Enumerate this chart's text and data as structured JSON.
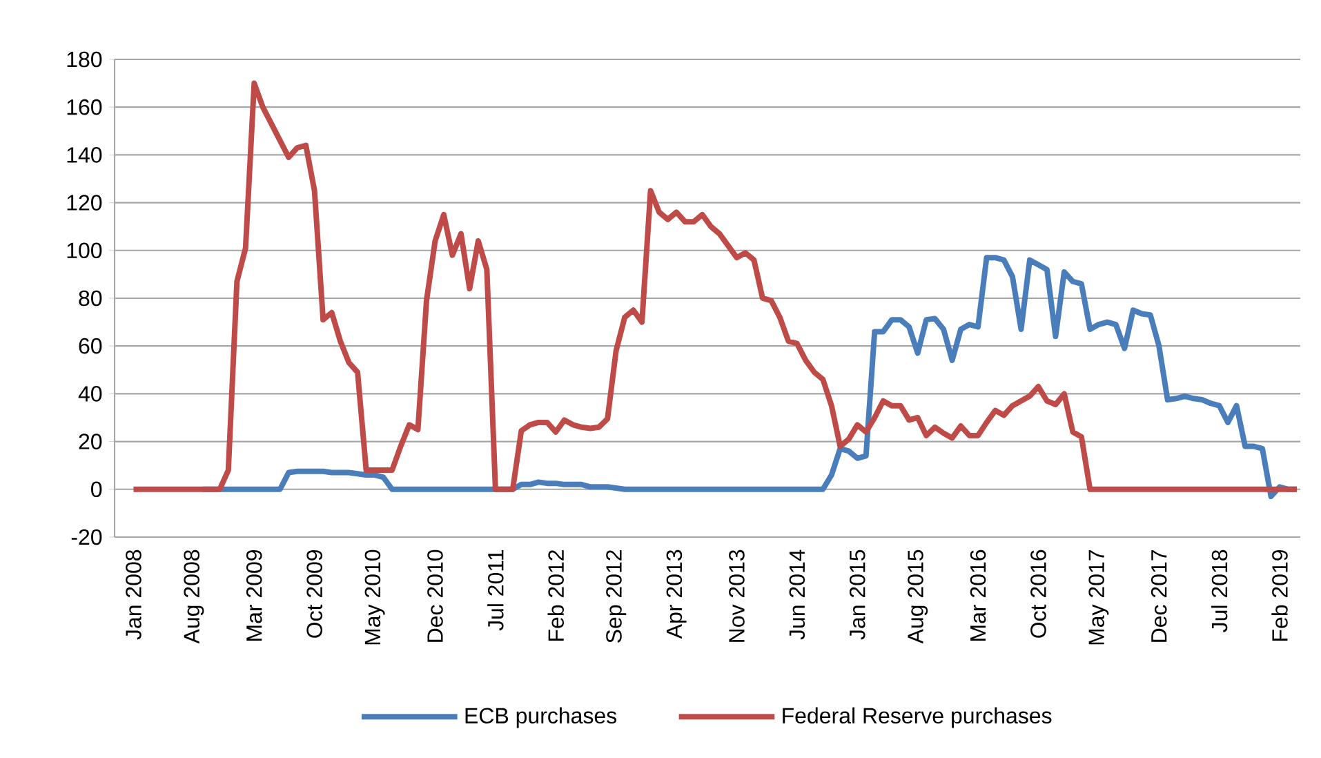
{
  "chart_data": {
    "type": "line",
    "categories": [
      "Jan 2008",
      null,
      null,
      null,
      null,
      null,
      null,
      "Aug 2008",
      null,
      null,
      null,
      null,
      null,
      null,
      "Mar 2009",
      null,
      null,
      null,
      null,
      null,
      null,
      "Oct 2009",
      null,
      null,
      null,
      null,
      null,
      null,
      "May 2010",
      null,
      null,
      null,
      null,
      null,
      null,
      "Dec 2010",
      null,
      null,
      null,
      null,
      null,
      null,
      "Jul 2011",
      null,
      null,
      null,
      null,
      null,
      null,
      "Feb 2012",
      null,
      null,
      null,
      null,
      null,
      null,
      "Sep 2012",
      null,
      null,
      null,
      null,
      null,
      null,
      "Apr 2013",
      null,
      null,
      null,
      null,
      null,
      null,
      "Nov 2013",
      null,
      null,
      null,
      null,
      null,
      null,
      "Jun 2014",
      null,
      null,
      null,
      null,
      null,
      null,
      "Jan 2015",
      null,
      null,
      null,
      null,
      null,
      null,
      "Aug 2015",
      null,
      null,
      null,
      null,
      null,
      null,
      "Mar 2016",
      null,
      null,
      null,
      null,
      null,
      null,
      "Oct 2016",
      null,
      null,
      null,
      null,
      null,
      null,
      "May 2017",
      null,
      null,
      null,
      null,
      null,
      null,
      "Dec 2017",
      null,
      null,
      null,
      null,
      null,
      null,
      "Jul 2018",
      null,
      null,
      null,
      null,
      null,
      null,
      "Feb 2019",
      null,
      null
    ],
    "series": [
      {
        "name": "ECB purchases",
        "color": "#4a7ebb",
        "values": [
          null,
          null,
          null,
          null,
          null,
          null,
          null,
          null,
          0,
          0,
          0,
          0,
          0,
          0,
          0,
          0,
          0,
          0,
          7,
          7.5,
          7.5,
          7.5,
          7.5,
          7,
          7,
          7,
          6.5,
          6,
          6,
          5,
          0,
          0,
          0,
          0,
          0,
          0,
          0,
          0,
          0,
          0,
          0,
          0,
          0,
          0,
          0,
          2,
          2,
          3,
          2.5,
          2.5,
          2,
          2,
          2,
          1,
          1,
          1,
          0.5,
          0,
          0,
          0,
          0,
          0,
          0,
          0,
          0,
          0,
          0,
          0,
          0,
          0,
          0,
          0,
          0,
          0,
          0,
          0,
          0,
          0,
          0,
          0,
          0,
          6,
          17,
          16,
          13,
          14,
          66,
          66,
          71,
          71,
          68,
          57,
          71,
          71.5,
          67,
          54,
          67,
          69,
          68,
          97,
          97,
          96,
          89,
          67,
          96,
          94,
          92,
          64,
          91,
          87,
          86,
          67,
          69,
          70,
          69,
          59,
          75,
          73.5,
          73,
          60,
          37.5,
          38,
          39,
          38,
          37.5,
          36,
          35,
          28,
          35,
          18,
          18,
          17,
          -3,
          1,
          0,
          0
        ]
      },
      {
        "name": "Federal Reserve purchases",
        "color": "#be4b48",
        "values": [
          0,
          0,
          0,
          0,
          0,
          0,
          0,
          0,
          0,
          0,
          0,
          8,
          87,
          101,
          170,
          160,
          153,
          146,
          139,
          143,
          144,
          125,
          71,
          74,
          62,
          53,
          49,
          8,
          8,
          8,
          8,
          18,
          27,
          25,
          79,
          104,
          115,
          98,
          107,
          84,
          104,
          92,
          0,
          0,
          0,
          24.5,
          27,
          28,
          28,
          24,
          29,
          27,
          26,
          25.5,
          26,
          29.5,
          58,
          72,
          75,
          70,
          125,
          116,
          113,
          116,
          112,
          112,
          115,
          110,
          107,
          102,
          97,
          99,
          96,
          80,
          79,
          72,
          62,
          61,
          54,
          49,
          46,
          35,
          18,
          21,
          27,
          24,
          30,
          37,
          35,
          35,
          29,
          30,
          22.5,
          26,
          23.5,
          21.5,
          26.5,
          22.5,
          22.5,
          28,
          33,
          31,
          35,
          37,
          39,
          43,
          37,
          35.5,
          40,
          24,
          22,
          0,
          0,
          0,
          0,
          0,
          0,
          0,
          0,
          0,
          0,
          0,
          0,
          0,
          0,
          0,
          0,
          0,
          0,
          0,
          0,
          0,
          0,
          0,
          0,
          0
        ]
      }
    ],
    "ylim": [
      -20,
      180
    ],
    "yticks": [
      -20,
      0,
      20,
      40,
      60,
      80,
      100,
      120,
      140,
      160,
      180
    ],
    "grid": "y",
    "legend": "bottom",
    "line_style": "solid"
  }
}
